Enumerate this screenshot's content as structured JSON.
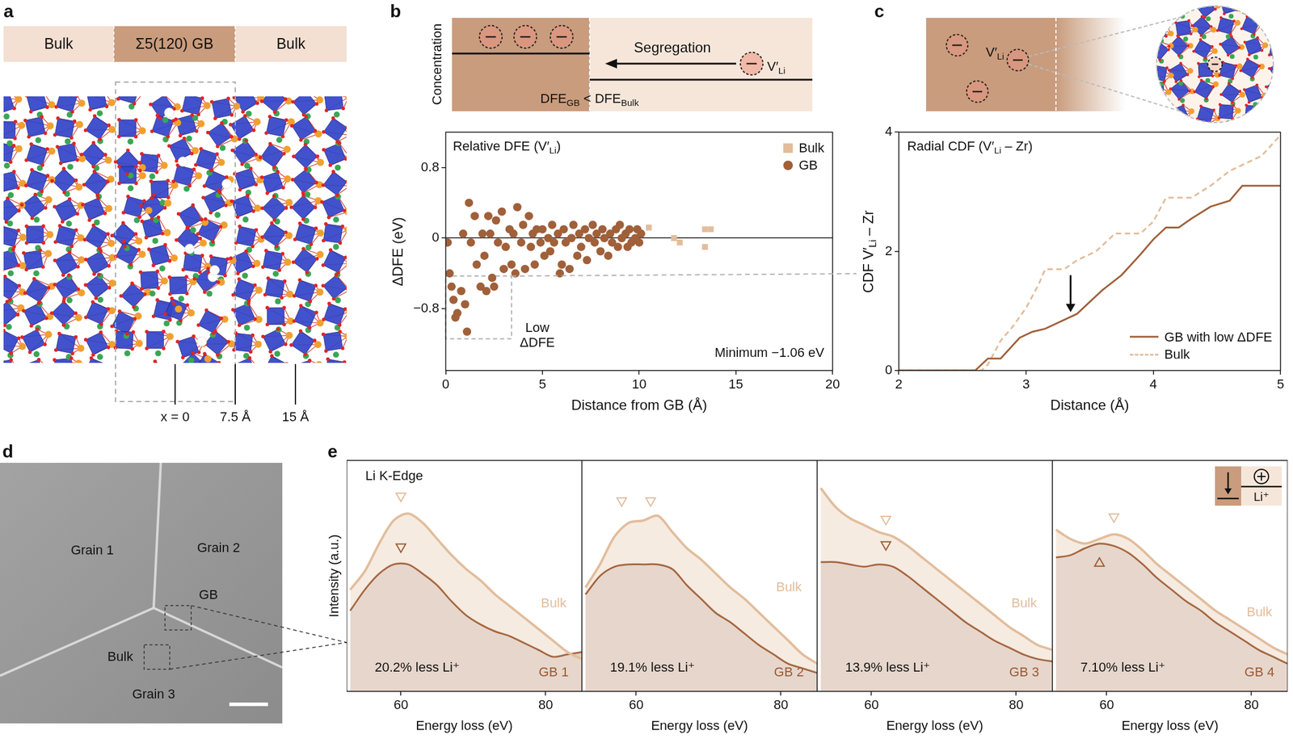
{
  "figure": {
    "a": {
      "letter": "a",
      "bar": [
        "Bulk",
        "Σ5(120) GB",
        "Bulk"
      ],
      "positions": [
        {
          "value": 0,
          "label": "x = 0"
        },
        {
          "value": 7.5,
          "label": "7.5 Å"
        },
        {
          "value": 15,
          "label": "15 Å"
        }
      ]
    },
    "b": {
      "letter": "b",
      "y_label": "Concentration",
      "arrow_label": "Segregation",
      "species": [
        {
          "t": "V′"
        },
        {
          "sub": "Li"
        }
      ],
      "relation": [
        {
          "t": "DFE"
        },
        {
          "sub": "GB"
        },
        {
          "t": " < DFE"
        },
        {
          "sub": "Bulk"
        }
      ]
    },
    "c": {
      "letter": "c",
      "species": [
        {
          "t": "V′"
        },
        {
          "sub": "Li"
        }
      ]
    },
    "d": {
      "letter": "d",
      "labels": [
        "Grain 1",
        "Grain 2",
        "GB",
        "Bulk",
        "Grain 3"
      ]
    },
    "e": {
      "letter": "e",
      "inset_label": "Li⁺"
    }
  },
  "chart_data": [
    {
      "type": "scatter",
      "title": [
        {
          "t": "Relative DFE (V′"
        },
        {
          "sub": "Li"
        },
        {
          "t": ")"
        }
      ],
      "x_label": "Distance from GB (Å)",
      "y_label": "ΔDFE (eV)",
      "xlim": [
        0,
        20
      ],
      "xticks": [
        0,
        5,
        10,
        15,
        20
      ],
      "ylim": [
        -1.5,
        1.2
      ],
      "yticks": [
        {
          "value": -0.8,
          "label": "−0.8"
        },
        0,
        0.8
      ],
      "legend": "upper right",
      "series": [
        {
          "name": "Bulk",
          "color": "#e2bd9c",
          "marker": "square",
          "x": [
            10.5,
            11.8,
            12.1,
            13.4,
            13.7,
            13.4
          ],
          "values": [
            0.12,
            0,
            -0.05,
            0.1,
            0.1,
            -0.1
          ]
        },
        {
          "name": "GB",
          "color": "#a0603a",
          "marker": "circle",
          "x": [
            0.1,
            0.2,
            0.3,
            0.4,
            0.5,
            0.6,
            0.8,
            0.9,
            1.0,
            1.1,
            1.2,
            1.3,
            1.5,
            1.6,
            1.8,
            1.9,
            2.0,
            2.1,
            2.2,
            2.3,
            2.4,
            2.5,
            2.6,
            2.7,
            2.9,
            3.0,
            3.1,
            3.3,
            3.4,
            3.5,
            3.6,
            3.7,
            3.9,
            4.0,
            4.1,
            4.3,
            4.4,
            4.5,
            4.6,
            4.7,
            4.9,
            5.0,
            5.1,
            5.3,
            5.4,
            5.5,
            5.6,
            5.8,
            5.9,
            6.0,
            6.1,
            6.2,
            6.4,
            6.5,
            6.6,
            6.8,
            6.9,
            7.0,
            7.2,
            7.3,
            7.4,
            7.6,
            7.7,
            7.8,
            8.0,
            8.1,
            8.2,
            8.4,
            8.5,
            8.6,
            8.8,
            8.9,
            9.0,
            9.1,
            9.3,
            9.4,
            9.5,
            9.6,
            9.8,
            9.9,
            10.0,
            10.1
          ],
          "values": [
            -0.05,
            -0.4,
            -0.55,
            -0.7,
            -0.9,
            -0.85,
            -0.6,
            0.05,
            -0.75,
            -1.06,
            0.4,
            -0.05,
            0.25,
            -0.3,
            -0.55,
            0.05,
            -0.2,
            -0.6,
            0.25,
            0.05,
            -0.45,
            -0.55,
            0.2,
            -0.05,
            0.3,
            -0.35,
            -0.1,
            0.1,
            -0.3,
            0.05,
            -0.4,
            0.35,
            -0.05,
            0.15,
            -0.35,
            0.25,
            -0.1,
            0.05,
            -0.3,
            0.1,
            -0.05,
            0.1,
            -0.2,
            0,
            -0.15,
            0.15,
            -0.05,
            0.05,
            -0.4,
            -0.3,
            0.1,
            -0.05,
            -0.35,
            0,
            0.15,
            -0.2,
            0.05,
            -0.1,
            0.1,
            -0.25,
            0,
            0.15,
            -0.05,
            0.05,
            -0.15,
            0.1,
            0,
            -0.2,
            0.05,
            -0.05,
            0.1,
            -0.1,
            0.15,
            0,
            0.05,
            -0.1,
            0.1,
            -0.05,
            0,
            0.1,
            -0.05,
            0.05
          ]
        }
      ],
      "highlight": {
        "x": [
          0,
          3.4
        ],
        "y": [
          -1.14,
          -0.43
        ],
        "label": [
          "Low",
          "ΔDFE"
        ]
      },
      "annotation": "Minimum −1.06 eV"
    },
    {
      "type": "line",
      "title": [
        {
          "t": "Radial CDF (V′"
        },
        {
          "sub": "Li"
        },
        {
          "t": " – Zr)"
        }
      ],
      "x_label": "Distance (Å)",
      "y_label": [
        {
          "t": "CDF V′"
        },
        {
          "sub": "Li"
        },
        {
          "t": " – Zr"
        }
      ],
      "xlim": [
        2,
        5
      ],
      "xticks": [
        2,
        3,
        4,
        5
      ],
      "ylim": [
        0,
        4
      ],
      "yticks": [
        0,
        2,
        4
      ],
      "legend": "lower right",
      "series": [
        {
          "name": "GB with low ΔDFE",
          "color": "#a0603a",
          "line_style": "solid",
          "x": [
            2.0,
            2.6,
            2.7,
            2.8,
            2.95,
            3.05,
            3.15,
            3.3,
            3.4,
            3.5,
            3.6,
            3.75,
            3.9,
            4.0,
            4.1,
            4.2,
            4.3,
            4.45,
            4.6,
            4.7,
            5.0
          ],
          "values": [
            0,
            0,
            0.2,
            0.2,
            0.55,
            0.65,
            0.7,
            0.85,
            0.95,
            1.15,
            1.35,
            1.6,
            1.95,
            2.2,
            2.4,
            2.4,
            2.55,
            2.75,
            2.85,
            3.1,
            3.1
          ]
        },
        {
          "name": "Bulk",
          "color": "#e2bd9c",
          "line_style": "dashed",
          "x": [
            2.0,
            2.65,
            2.7,
            2.8,
            2.9,
            3.0,
            3.1,
            3.15,
            3.3,
            3.4,
            3.55,
            3.7,
            3.9,
            4.0,
            4.1,
            4.3,
            4.45,
            4.6,
            4.85,
            5.0
          ],
          "values": [
            0,
            0,
            0.1,
            0.5,
            0.75,
            1.05,
            1.45,
            1.7,
            1.7,
            1.85,
            2.0,
            2.3,
            2.3,
            2.5,
            2.9,
            2.9,
            3.1,
            3.35,
            3.6,
            3.95
          ]
        }
      ],
      "arrow": {
        "x": 3.35,
        "y_from": 1.6,
        "y_to": 0.98
      }
    },
    {
      "type": "line",
      "title": "Li K-Edge",
      "x_label": "Energy loss (eV)",
      "y_label": "Intensity (a.u.)",
      "x": [
        53,
        55,
        57,
        59,
        61,
        63,
        65,
        67,
        69,
        71,
        73,
        75,
        77,
        79,
        81,
        83,
        85
      ],
      "xlim": [
        52.5,
        85
      ],
      "xticks": [
        60,
        80
      ],
      "ylim": [
        0,
        1
      ],
      "tick_labels": "x",
      "series": [
        {
          "name": "Bulk",
          "color": "#e2bd9c",
          "values": [
            0.44,
            0.52,
            0.64,
            0.74,
            0.77,
            0.73,
            0.66,
            0.59,
            0.53,
            0.48,
            0.42,
            0.37,
            0.32,
            0.27,
            0.22,
            0.17,
            0.14
          ]
        },
        {
          "name": "GB 1",
          "color": "#9c5a33",
          "values": [
            0.35,
            0.44,
            0.51,
            0.55,
            0.55,
            0.51,
            0.46,
            0.39,
            0.33,
            0.29,
            0.26,
            0.24,
            0.21,
            0.18,
            0.15,
            0.16,
            0.17
          ]
        }
      ],
      "annotation": "20.2% less Li⁺",
      "peaks": [
        {
          "series": "Bulk",
          "x": 60,
          "y": 0.84,
          "marker": "triangle-down"
        },
        {
          "series": "GB 1",
          "x": 60,
          "y": 0.62,
          "marker": "triangle-down"
        }
      ]
    },
    {
      "type": "line",
      "x_label": "Energy loss (eV)",
      "x": [
        53,
        55,
        57,
        59,
        61,
        63,
        65,
        67,
        69,
        71,
        73,
        75,
        77,
        79,
        81,
        83,
        85
      ],
      "xlim": [
        52.5,
        85
      ],
      "xticks": [
        60,
        80
      ],
      "ylim": [
        0,
        1
      ],
      "tick_labels": "x",
      "series": [
        {
          "name": "Bulk",
          "color": "#e2bd9c",
          "values": [
            0.45,
            0.55,
            0.67,
            0.73,
            0.74,
            0.76,
            0.69,
            0.62,
            0.57,
            0.51,
            0.45,
            0.4,
            0.34,
            0.28,
            0.22,
            0.16,
            0.12
          ]
        },
        {
          "name": "GB 2",
          "color": "#9c5a33",
          "values": [
            0.42,
            0.5,
            0.54,
            0.55,
            0.55,
            0.55,
            0.53,
            0.46,
            0.4,
            0.34,
            0.3,
            0.25,
            0.2,
            0.16,
            0.12,
            0.1,
            0.08
          ]
        }
      ],
      "annotation": "19.1% less Li⁺",
      "peaks": [
        {
          "series": "Bulk",
          "x": 58,
          "y": 0.82,
          "marker": "triangle-down"
        },
        {
          "series": "Bulk",
          "x": 62,
          "y": 0.82,
          "marker": "triangle-down"
        }
      ]
    },
    {
      "type": "line",
      "x_label": "Energy loss (eV)",
      "x": [
        53,
        55,
        57,
        59,
        61,
        63,
        65,
        67,
        69,
        71,
        73,
        75,
        77,
        79,
        81,
        83,
        85
      ],
      "xlim": [
        52.5,
        85
      ],
      "xticks": [
        60,
        80
      ],
      "ylim": [
        0,
        1
      ],
      "tick_labels": "x",
      "series": [
        {
          "name": "Bulk",
          "color": "#e2bd9c",
          "values": [
            0.88,
            0.8,
            0.75,
            0.72,
            0.69,
            0.67,
            0.63,
            0.58,
            0.53,
            0.48,
            0.43,
            0.38,
            0.33,
            0.28,
            0.24,
            0.2,
            0.18
          ]
        },
        {
          "name": "GB 3",
          "color": "#9c5a33",
          "values": [
            0.56,
            0.56,
            0.55,
            0.54,
            0.55,
            0.54,
            0.5,
            0.45,
            0.4,
            0.35,
            0.3,
            0.26,
            0.22,
            0.19,
            0.16,
            0.14,
            0.13
          ]
        }
      ],
      "annotation": "13.9% less Li⁺",
      "peaks": [
        {
          "series": "Bulk",
          "x": 62,
          "y": 0.74,
          "marker": "triangle-down"
        },
        {
          "series": "GB 3",
          "x": 62,
          "y": 0.63,
          "marker": "triangle-down"
        }
      ]
    },
    {
      "type": "line",
      "x_label": "Energy loss (eV)",
      "x": [
        53,
        55,
        57,
        59,
        61,
        63,
        65,
        67,
        69,
        71,
        73,
        75,
        77,
        79,
        81,
        83,
        85
      ],
      "xlim": [
        52.5,
        85
      ],
      "xticks": [
        60,
        80
      ],
      "ylim": [
        0,
        1
      ],
      "tick_labels": "x",
      "series": [
        {
          "name": "Bulk",
          "color": "#e2bd9c",
          "values": [
            0.7,
            0.66,
            0.64,
            0.66,
            0.68,
            0.66,
            0.61,
            0.55,
            0.5,
            0.45,
            0.4,
            0.35,
            0.31,
            0.27,
            0.23,
            0.19,
            0.16
          ]
        },
        {
          "name": "GB 4",
          "color": "#9c5a33",
          "values": [
            0.58,
            0.59,
            0.62,
            0.64,
            0.63,
            0.6,
            0.55,
            0.49,
            0.44,
            0.39,
            0.35,
            0.3,
            0.26,
            0.22,
            0.18,
            0.15,
            0.12
          ]
        }
      ],
      "annotation": "7.10% less Li⁺",
      "peaks": [
        {
          "series": "Bulk",
          "x": 61,
          "y": 0.75,
          "marker": "triangle-down"
        },
        {
          "series": "GB 4",
          "x": 59,
          "y": 0.56,
          "marker": "triangle-up"
        }
      ]
    }
  ]
}
